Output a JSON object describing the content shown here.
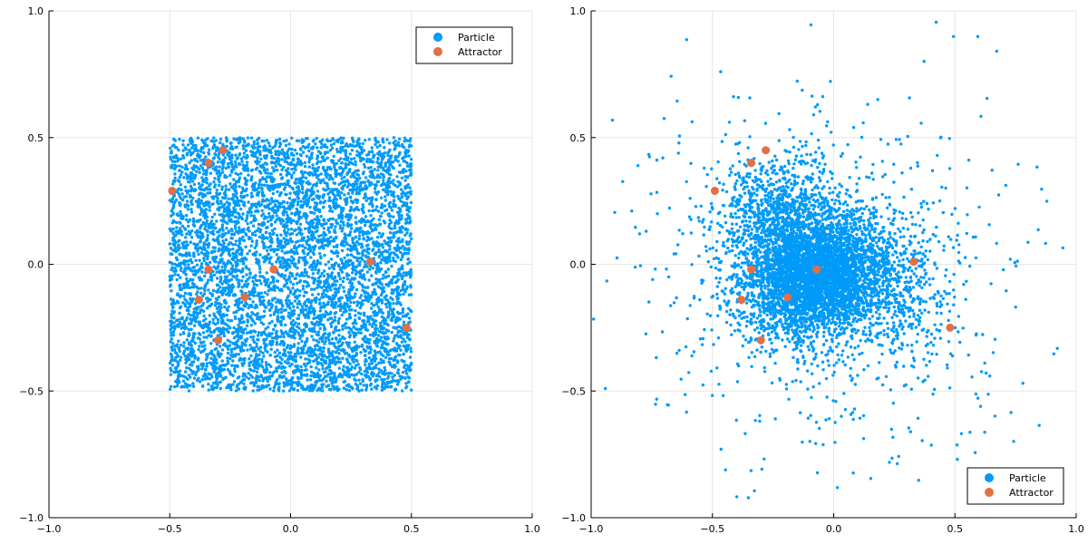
{
  "colors": {
    "particle": "#009af9",
    "attractor": "#e26f46"
  },
  "chart_data": [
    {
      "type": "scatter",
      "title": "",
      "xlabel": "",
      "ylabel": "",
      "xlim": [
        -1.0,
        1.0
      ],
      "ylim": [
        -1.0,
        1.0
      ],
      "xticks": [
        -1.0,
        -0.5,
        0.0,
        0.5,
        1.0
      ],
      "yticks": [
        -1.0,
        -0.5,
        0.0,
        0.5,
        1.0
      ],
      "xtick_labels": [
        "−1.0",
        "−0.5",
        "0.0",
        "0.5",
        "1.0"
      ],
      "ytick_labels": [
        "−1.0",
        "−0.5",
        "0.0",
        "0.5",
        "1.0"
      ],
      "grid": true,
      "legend": {
        "position": "top-right",
        "entries": [
          "Particle",
          "Attractor"
        ]
      },
      "particles": {
        "distribution": "uniform",
        "count": 6000,
        "x_range": [
          -0.5,
          0.5
        ],
        "y_range": [
          -0.5,
          0.5
        ]
      },
      "series": [
        {
          "name": "Attractor",
          "x": [
            -0.49,
            -0.34,
            -0.28,
            -0.34,
            -0.38,
            -0.07,
            -0.19,
            0.33,
            -0.3,
            0.48
          ],
          "y": [
            0.29,
            0.4,
            0.45,
            -0.02,
            -0.14,
            -0.02,
            -0.13,
            0.01,
            -0.3,
            -0.25
          ]
        }
      ]
    },
    {
      "type": "scatter",
      "title": "",
      "xlabel": "",
      "ylabel": "",
      "xlim": [
        -1.0,
        1.0
      ],
      "ylim": [
        -1.0,
        1.0
      ],
      "xticks": [
        -1.0,
        -0.5,
        0.0,
        0.5,
        1.0
      ],
      "yticks": [
        -1.0,
        -0.5,
        0.0,
        0.5,
        1.0
      ],
      "xtick_labels": [
        "−1.0",
        "−0.5",
        "0.0",
        "0.5",
        "1.0"
      ],
      "ytick_labels": [
        "−1.0",
        "−0.5",
        "0.0",
        "0.5",
        "1.0"
      ],
      "grid": true,
      "legend": {
        "position": "bottom-right",
        "entries": [
          "Particle",
          "Attractor"
        ]
      },
      "particles": {
        "distribution": "clustered-around-attractors",
        "count": 6000,
        "center_x": -0.05,
        "center_y": -0.03
      },
      "series": [
        {
          "name": "Attractor",
          "x": [
            -0.49,
            -0.34,
            -0.28,
            -0.34,
            -0.38,
            -0.07,
            -0.19,
            0.33,
            -0.3,
            0.48
          ],
          "y": [
            0.29,
            0.4,
            0.45,
            -0.02,
            -0.14,
            -0.02,
            -0.13,
            0.01,
            -0.3,
            -0.25
          ]
        }
      ]
    }
  ]
}
